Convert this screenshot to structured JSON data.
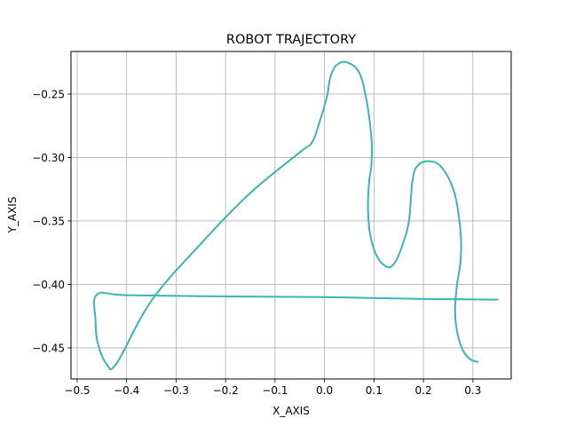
{
  "chart_data": {
    "type": "line",
    "title": "ROBOT TRAJECTORY",
    "xlabel": "X_AXIS",
    "ylabel": "Y_AXIS",
    "xlim": [
      -0.5125,
      0.3775
    ],
    "ylim": [
      -0.4745,
      -0.2165
    ],
    "xticks": [
      -0.5,
      -0.4,
      -0.3,
      -0.2,
      -0.1,
      0.0,
      0.1,
      0.2,
      0.3
    ],
    "xtick_labels": [
      "−0.5",
      "−0.4",
      "−0.3",
      "−0.2",
      "−0.1",
      "0.0",
      "0.1",
      "0.2",
      "0.3"
    ],
    "yticks": [
      -0.45,
      -0.4,
      -0.35,
      -0.3,
      -0.25
    ],
    "ytick_labels": [
      "−0.45",
      "−0.40",
      "−0.35",
      "−0.30",
      "−0.25"
    ],
    "grid": true,
    "line_color": "#3cb4b0",
    "series": [
      {
        "x": [
          0.35,
          0.2,
          0.0,
          -0.2,
          -0.4,
          -0.46,
          -0.463,
          -0.458,
          -0.44,
          -0.42,
          -0.35,
          -0.25,
          -0.15,
          -0.05,
          -0.025,
          -0.01,
          0.005,
          0.01,
          0.015,
          0.025,
          0.045,
          0.07,
          0.085,
          0.095,
          0.095,
          0.09,
          0.088,
          0.092,
          0.105,
          0.125,
          0.14,
          0.155,
          0.17,
          0.175,
          0.178,
          0.185,
          0.205,
          0.235,
          0.262,
          0.275,
          0.275,
          0.268,
          0.264,
          0.268,
          0.28,
          0.295,
          0.31
        ],
        "y": [
          -0.412,
          -0.4115,
          -0.41,
          -0.4095,
          -0.4085,
          -0.408,
          -0.428,
          -0.447,
          -0.463,
          -0.462,
          -0.413,
          -0.368,
          -0.328,
          -0.296,
          -0.288,
          -0.272,
          -0.252,
          -0.24,
          -0.233,
          -0.227,
          -0.225,
          -0.233,
          -0.255,
          -0.285,
          -0.305,
          -0.32,
          -0.34,
          -0.36,
          -0.377,
          -0.386,
          -0.384,
          -0.372,
          -0.352,
          -0.33,
          -0.318,
          -0.308,
          -0.303,
          -0.307,
          -0.327,
          -0.358,
          -0.382,
          -0.4,
          -0.42,
          -0.437,
          -0.452,
          -0.459,
          -0.461
        ]
      }
    ]
  }
}
